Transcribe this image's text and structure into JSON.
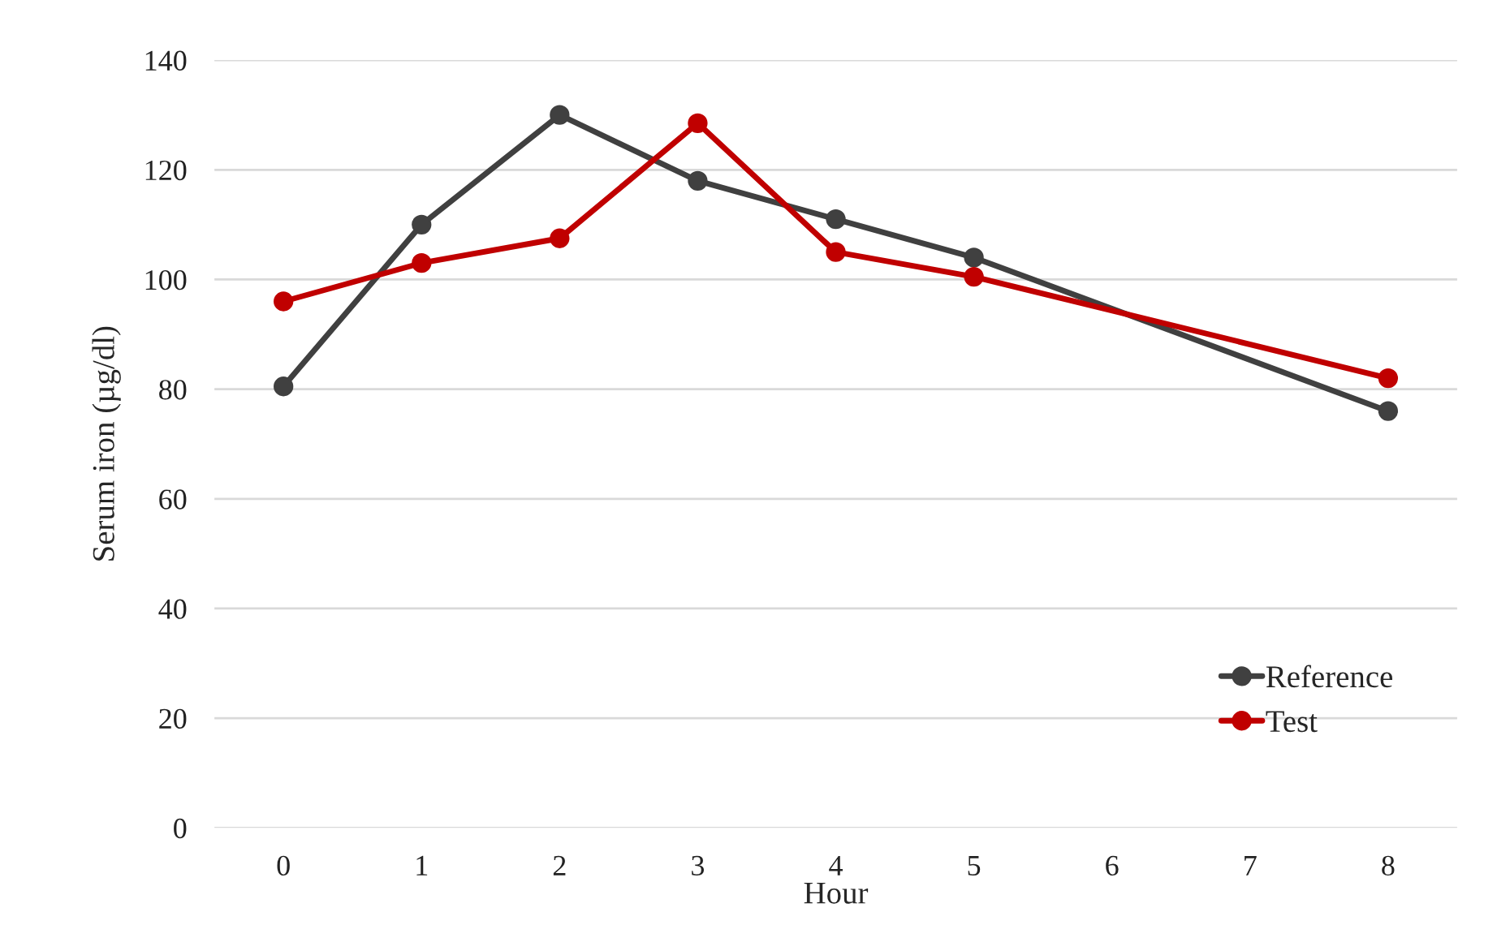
{
  "chart_data": {
    "type": "line",
    "xlabel": "Hour",
    "ylabel": "Serum iron (µg/dl)",
    "x": [
      0,
      1,
      2,
      3,
      4,
      5,
      8
    ],
    "series": [
      {
        "name": "Reference",
        "color": "#404040",
        "values": [
          80.5,
          110,
          130,
          118,
          111,
          104,
          76
        ]
      },
      {
        "name": "Test",
        "color": "#c00000",
        "values": [
          96,
          103,
          107.5,
          128.5,
          105,
          100.5,
          82
        ]
      }
    ],
    "xlim": [
      -0.5,
      8.5
    ],
    "xticks": [
      0,
      1,
      2,
      3,
      4,
      5,
      6,
      7,
      8
    ],
    "ylim": [
      0,
      140
    ],
    "yticks": [
      0,
      20,
      40,
      60,
      80,
      100,
      120,
      140
    ],
    "grid": "y",
    "legend": "bottom right",
    "marker": "circle",
    "line_style": "solid"
  }
}
